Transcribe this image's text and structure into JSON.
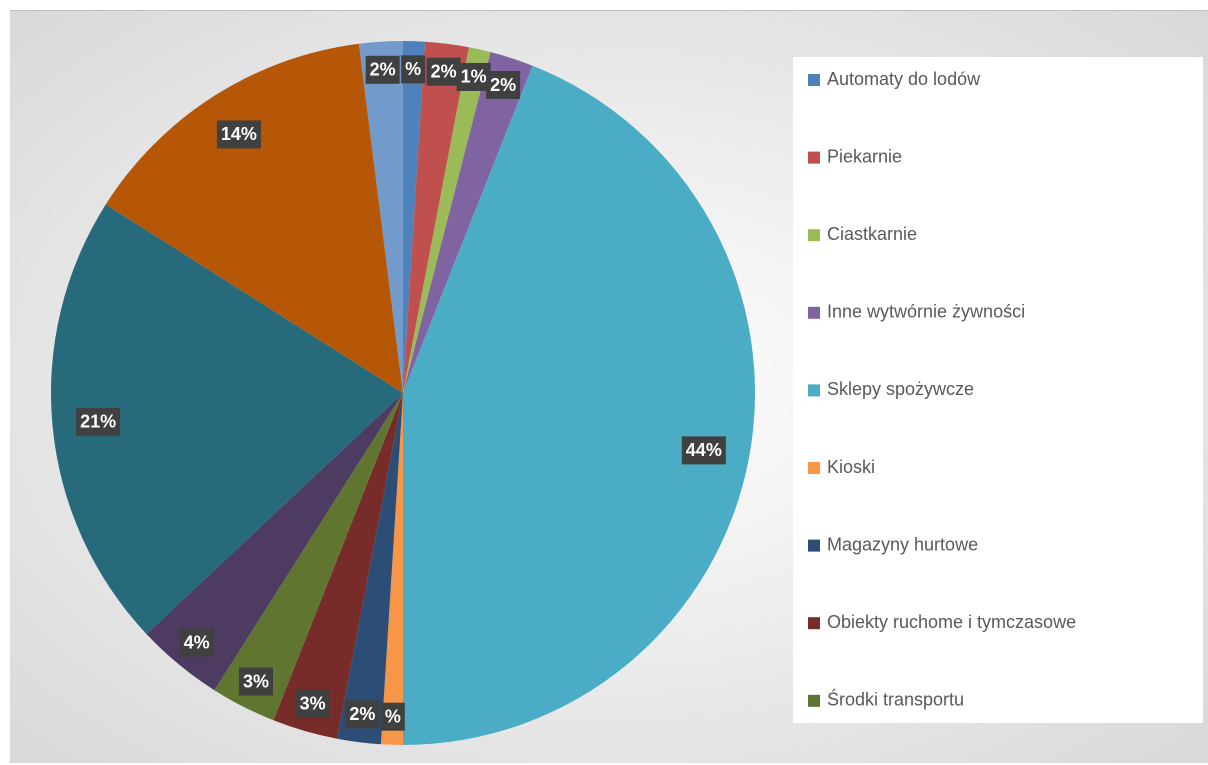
{
  "chart_data": {
    "type": "pie",
    "categories": [
      "Automaty do lodów",
      "Piekarnie",
      "Ciastkarnie",
      "Inne wytwórnie żywności",
      "Sklepy spożywcze",
      "Kioski",
      "Magazyny hurtowe",
      "Obiekty ruchome i tymczasowe",
      "Środki transportu",
      null,
      null,
      null,
      null
    ],
    "values": [
      1,
      2,
      1,
      2,
      44,
      1,
      2,
      3,
      3,
      4,
      21,
      14,
      2
    ],
    "value_labels": [
      "%",
      "2%",
      "1%",
      "2%",
      "44%",
      "%",
      "2%",
      "3%",
      "3%",
      "4%",
      "21%",
      "14%",
      "2%"
    ],
    "colors": [
      "#4f81bd",
      "#c0504d",
      "#9bbb59",
      "#8064a2",
      "#4bacc6",
      "#f79646",
      "#2c4d75",
      "#772c2a",
      "#5f7530",
      "#4d3b62",
      "#276a7c",
      "#b65708",
      "#729aca"
    ],
    "legend": "right"
  }
}
